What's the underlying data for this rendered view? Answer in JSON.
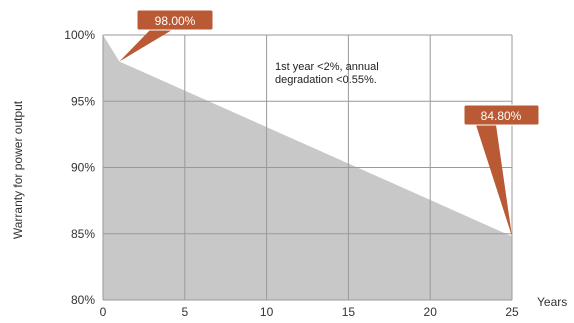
{
  "chart_data": {
    "type": "area",
    "x": [
      0,
      1,
      25
    ],
    "y": [
      100,
      98.0,
      84.8
    ],
    "xlim": [
      0,
      25
    ],
    "ylim": [
      80,
      100
    ],
    "x_ticks": [
      0,
      5,
      10,
      15,
      20,
      25
    ],
    "y_ticks": [
      80,
      85,
      90,
      95,
      100
    ],
    "y_tick_labels": [
      "80%",
      "85%",
      "90%",
      "95%",
      "100%"
    ],
    "xlabel": "Years",
    "ylabel": "Warranty for power output",
    "grid": true,
    "annotations": [
      {
        "text": "98.00%",
        "x": 1,
        "y": 98.0
      },
      {
        "text": "84.80%",
        "x": 25,
        "y": 84.8
      }
    ],
    "note_lines": [
      "1st year <2%, annual",
      "degradation <0.55%."
    ],
    "colors": {
      "fill": "#c8c8c8",
      "grid": "#9a9a9a",
      "callout": "#b95a35"
    }
  }
}
